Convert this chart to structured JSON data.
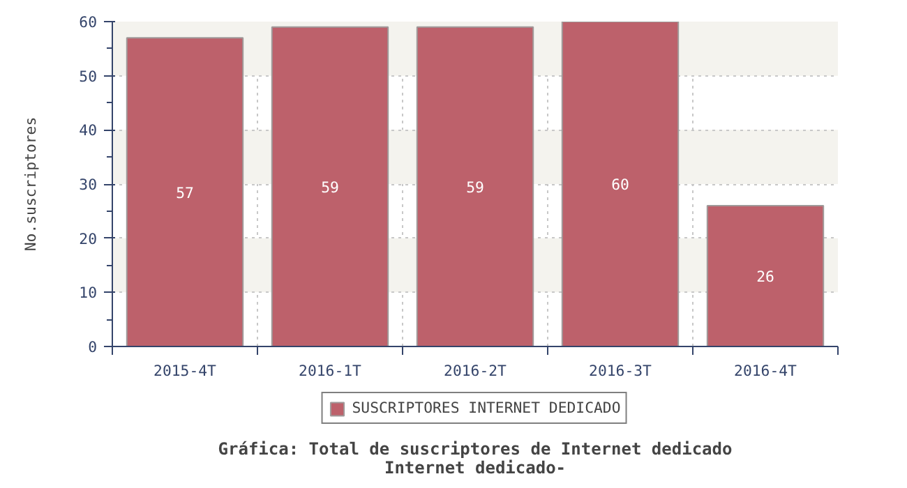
{
  "chart_data": {
    "type": "bar",
    "title": "Gráfica: Total de suscriptores de Internet dedicado",
    "subtitle": "Internet dedicado-",
    "ylabel": "No.suscriptores",
    "categories": [
      "2015-4T",
      "2016-1T",
      "2016-2T",
      "2016-3T",
      "2016-4T"
    ],
    "series": [
      {
        "name": "SUSCRIPTORES INTERNET DEDICADO",
        "color": "#bd616b",
        "values": [
          57,
          59,
          59,
          60,
          26
        ]
      }
    ],
    "ylim": [
      0,
      60
    ],
    "yticks": [
      0,
      10,
      20,
      30,
      40,
      50,
      60
    ],
    "grid": true,
    "legend": "bottom",
    "data_labels": true
  }
}
